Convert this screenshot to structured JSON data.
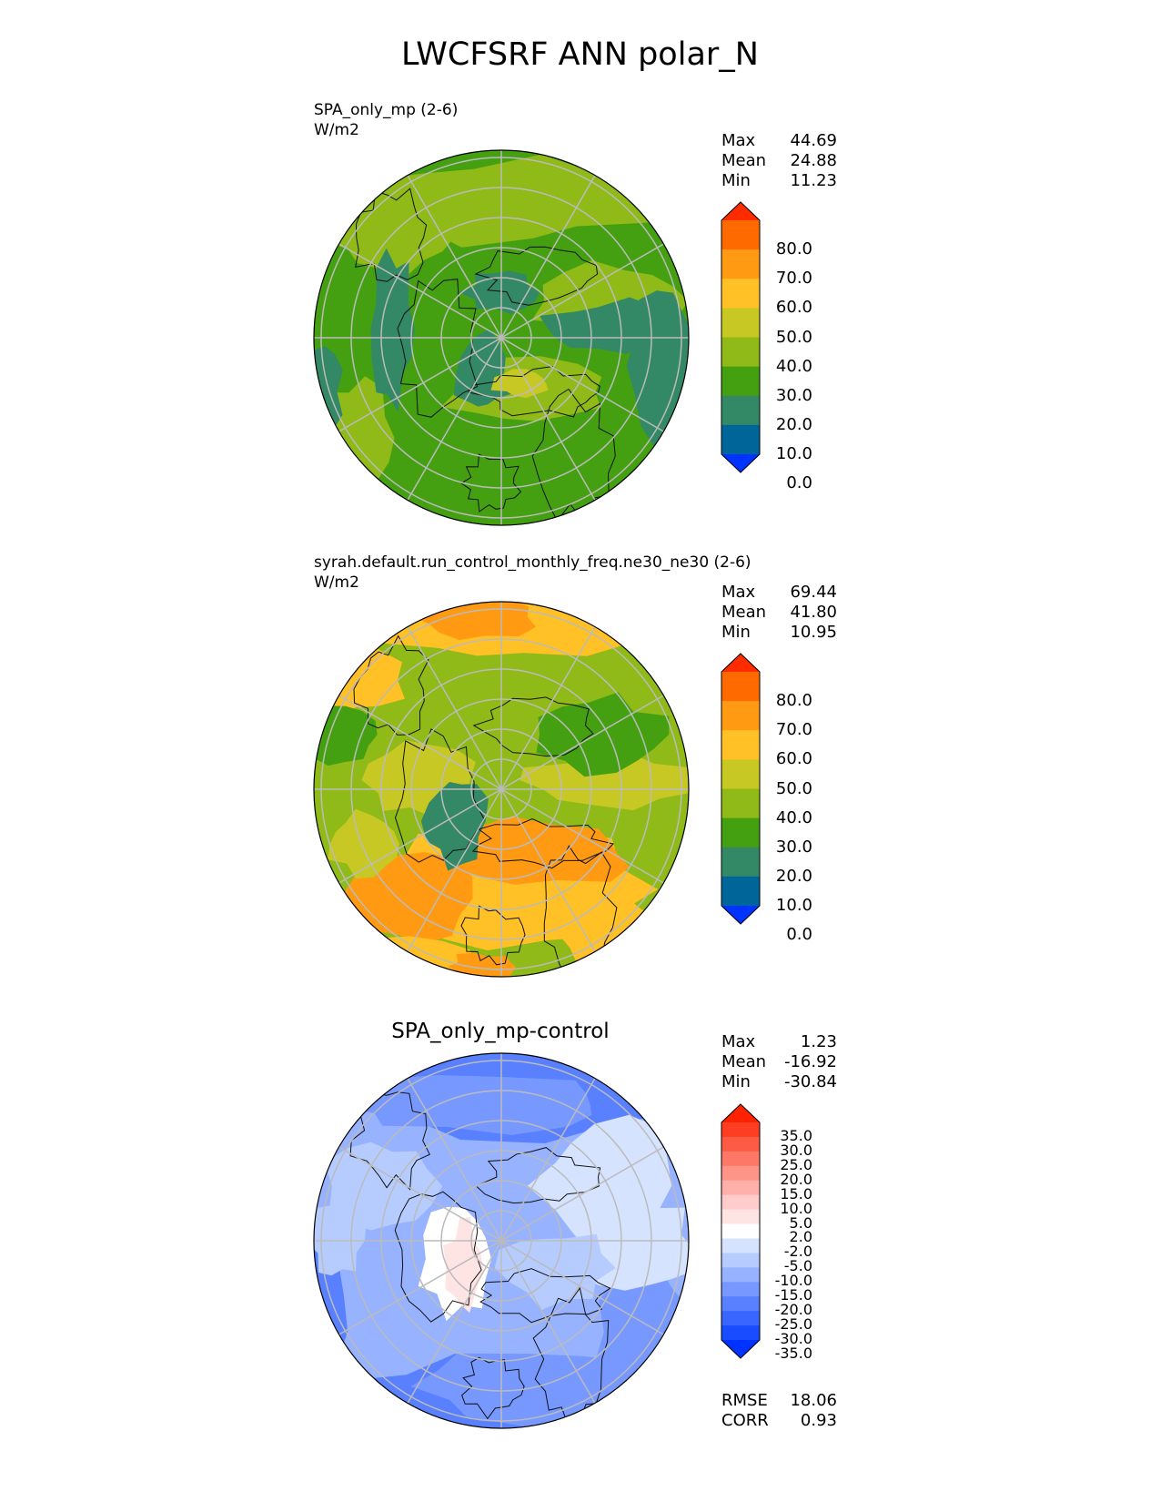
{
  "figure": {
    "title": "LWCFSRF ANN polar_N"
  },
  "panels": [
    {
      "label_line1": "SPA_only_mp (2-6)",
      "units": "W/m2",
      "stats": [
        {
          "label": "Max",
          "value": "44.69"
        },
        {
          "label": "Mean",
          "value": "24.88"
        },
        {
          "label": "Min",
          "value": "11.23"
        }
      ],
      "colorbar_ticks": [
        "80.0",
        "70.0",
        "60.0",
        "50.0",
        "40.0",
        "30.0",
        "20.0",
        "10.0",
        "0.0"
      ]
    },
    {
      "label_line1": "syrah.default.run_control_monthly_freq.ne30_ne30 (2-6)",
      "units": "W/m2",
      "stats": [
        {
          "label": "Max",
          "value": "69.44"
        },
        {
          "label": "Mean",
          "value": "41.80"
        },
        {
          "label": "Min",
          "value": "10.95"
        }
      ],
      "colorbar_ticks": [
        "80.0",
        "70.0",
        "60.0",
        "50.0",
        "40.0",
        "30.0",
        "20.0",
        "10.0",
        "0.0"
      ]
    },
    {
      "title": "SPA_only_mp-control",
      "stats": [
        {
          "label": "Max",
          "value": "1.23"
        },
        {
          "label": "Mean",
          "value": "-16.92"
        },
        {
          "label": "Min",
          "value": "-30.84"
        }
      ],
      "colorbar_ticks": [
        "35.0",
        "30.0",
        "25.0",
        "20.0",
        "15.0",
        "10.0",
        "5.0",
        "2.0",
        "-2.0",
        "-5.0",
        "-10.0",
        "-15.0",
        "-20.0",
        "-25.0",
        "-30.0",
        "-35.0"
      ],
      "metrics": [
        {
          "label": "RMSE",
          "value": "18.06"
        },
        {
          "label": "CORR",
          "value": "0.93"
        }
      ]
    }
  ],
  "chart_data": [
    {
      "type": "heatmap",
      "projection": "polar stereographic (North)",
      "title": "SPA_only_mp (2-6)",
      "units": "W/m2",
      "max": 44.69,
      "mean": 24.88,
      "min": 11.23,
      "levels": [
        0,
        10,
        20,
        30,
        40,
        50,
        60,
        70,
        80
      ],
      "colors": [
        "#0033ff",
        "#006699",
        "#338866",
        "#44a011",
        "#8fba18",
        "#c8c825",
        "#ffc125",
        "#ff9a12",
        "#ff6a00",
        "#ff2c00"
      ]
    },
    {
      "type": "heatmap",
      "projection": "polar stereographic (North)",
      "title": "syrah.default.run_control_monthly_freq.ne30_ne30 (2-6)",
      "units": "W/m2",
      "max": 69.44,
      "mean": 41.8,
      "min": 10.95,
      "levels": [
        0,
        10,
        20,
        30,
        40,
        50,
        60,
        70,
        80
      ],
      "colors": [
        "#0033ff",
        "#006699",
        "#338866",
        "#44a011",
        "#8fba18",
        "#c8c825",
        "#ffc125",
        "#ff9a12",
        "#ff6a00",
        "#ff2c00"
      ]
    },
    {
      "type": "heatmap",
      "projection": "polar stereographic (North)",
      "title": "SPA_only_mp-control",
      "max": 1.23,
      "mean": -16.92,
      "min": -30.84,
      "rmse": 18.06,
      "corr": 0.93,
      "levels": [
        -35,
        -30,
        -25,
        -20,
        -15,
        -10,
        -5,
        -2,
        2,
        5,
        10,
        15,
        20,
        25,
        30,
        35
      ],
      "colors": [
        "#0033ff",
        "#1a4cff",
        "#3966ff",
        "#5880ff",
        "#7799ff",
        "#97b2ff",
        "#b6ccff",
        "#d6e3ff",
        "#ffffff",
        "#ffe4e4",
        "#ffcccc",
        "#ffb0aa",
        "#ff9488",
        "#ff7766",
        "#ff5a44",
        "#ff3d22",
        "#ff2200"
      ]
    }
  ]
}
